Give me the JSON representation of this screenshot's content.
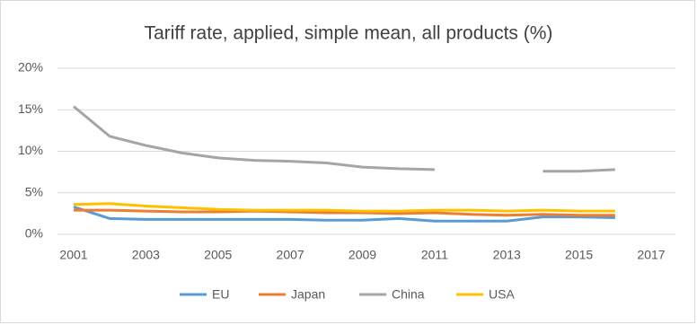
{
  "chart_data": {
    "type": "line",
    "title": "Tariff rate, applied, simple mean, all products (%)",
    "x": [
      2001,
      2002,
      2003,
      2004,
      2005,
      2006,
      2007,
      2008,
      2009,
      2010,
      2011,
      2012,
      2013,
      2014,
      2015,
      2016
    ],
    "series": [
      {
        "name": "EU",
        "color": "#5b9bd5",
        "values": [
          3.3,
          1.9,
          1.8,
          1.8,
          1.8,
          1.8,
          1.8,
          1.7,
          1.7,
          1.9,
          1.6,
          1.6,
          1.6,
          2.1,
          2.1,
          2.0
        ]
      },
      {
        "name": "Japan",
        "color": "#ed7d31",
        "values": [
          2.9,
          2.9,
          2.8,
          2.7,
          2.7,
          2.8,
          2.7,
          2.6,
          2.6,
          2.5,
          2.6,
          2.4,
          2.3,
          2.4,
          2.3,
          2.3
        ]
      },
      {
        "name": "China",
        "color": "#a5a5a5",
        "values": [
          15.4,
          11.8,
          10.7,
          9.8,
          9.2,
          8.9,
          8.8,
          8.6,
          8.1,
          7.9,
          7.8,
          null,
          null,
          7.6,
          7.6,
          7.8
        ]
      },
      {
        "name": "USA",
        "color": "#ffc000",
        "values": [
          3.6,
          3.7,
          3.4,
          3.2,
          3.0,
          2.9,
          2.9,
          2.9,
          2.8,
          2.8,
          2.9,
          2.9,
          2.8,
          2.9,
          2.8,
          2.8
        ]
      }
    ],
    "xlim": [
      2001,
      2017
    ],
    "xticks": [
      2001,
      2003,
      2005,
      2007,
      2009,
      2011,
      2013,
      2015,
      2017
    ],
    "ylim": [
      0,
      20
    ],
    "yticks": [
      {
        "value": 0,
        "label": "0%"
      },
      {
        "value": 5,
        "label": "5%"
      },
      {
        "value": 10,
        "label": "10%"
      },
      {
        "value": 15,
        "label": "15%"
      },
      {
        "value": 20,
        "label": "20%"
      }
    ],
    "grid": true,
    "legend": "bottom"
  }
}
